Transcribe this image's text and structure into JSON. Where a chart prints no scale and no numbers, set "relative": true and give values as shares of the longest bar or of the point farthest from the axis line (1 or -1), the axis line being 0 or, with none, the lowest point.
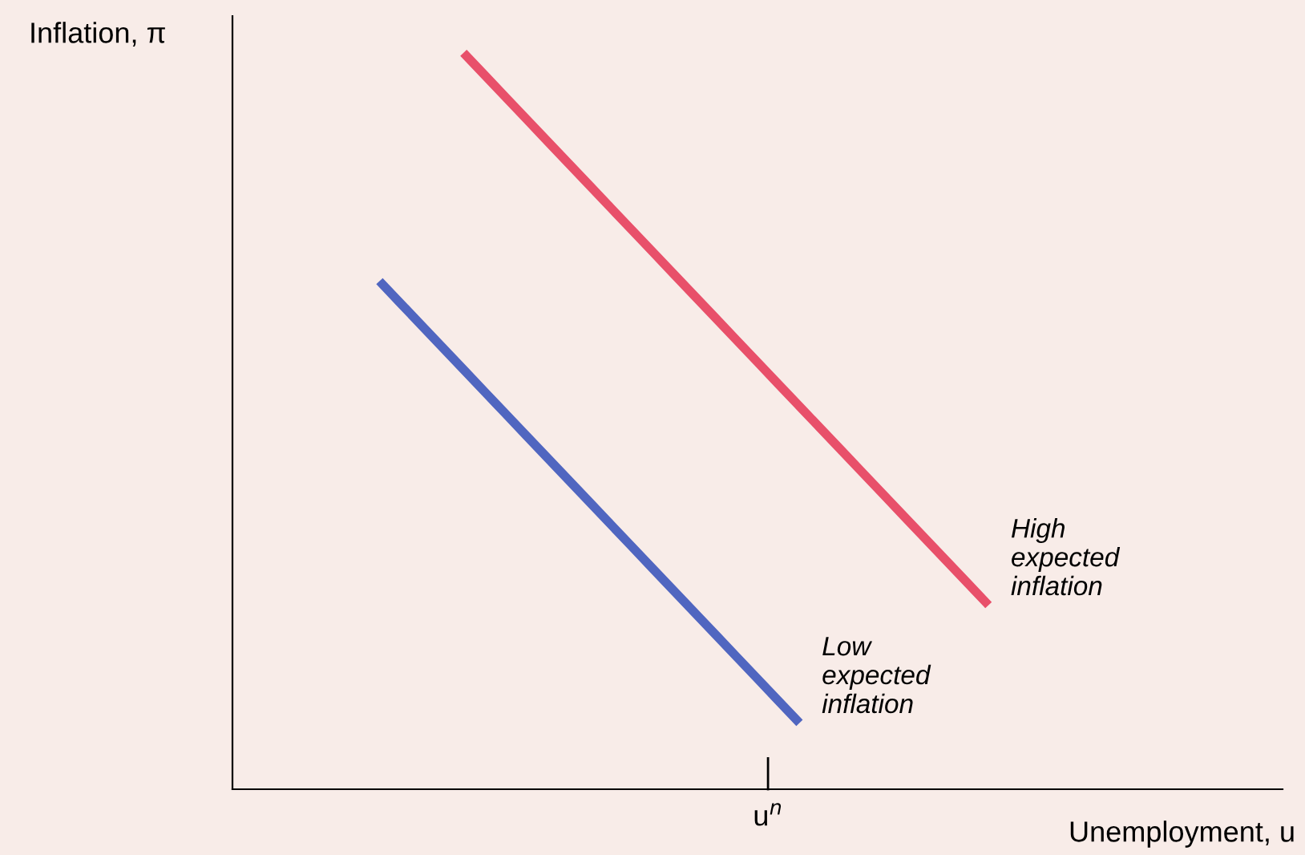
{
  "chart_data": {
    "type": "line",
    "relative": true,
    "xlabel": "Unemployment, u",
    "ylabel": "Inflation, π",
    "marker": "none",
    "line_style": "solid",
    "categories": [
      null,
      null,
      null,
      null,
      null,
      null,
      null,
      null,
      null,
      null,
      null,
      null,
      null,
      null,
      null,
      null,
      null,
      null,
      null,
      null,
      null,
      null,
      null,
      null,
      null,
      null,
      null,
      null,
      null,
      null,
      null,
      null,
      null,
      null,
      null,
      null,
      null,
      null,
      null,
      null,
      null,
      null,
      null,
      null,
      null,
      null,
      null,
      null,
      null,
      null
    ],
    "series": [
      {
        "color": "#e8506a",
        "values": [
          null,
          null,
          null,
          null,
          null,
          null,
          null,
          null,
          null,
          null,
          null,
          1.0,
          0.97,
          0.94,
          0.91,
          0.88,
          0.85,
          0.82,
          0.79,
          0.76,
          0.73,
          0.7,
          0.67,
          0.64,
          0.61,
          0.58,
          0.55,
          0.52,
          0.49,
          0.46,
          0.43,
          0.4,
          0.37,
          0.34,
          0.31,
          0.28,
          0.25,
          null,
          null,
          null,
          null,
          null,
          null,
          null,
          null,
          null,
          null,
          null,
          null,
          null
        ]
      },
      {
        "color": "#5066c0",
        "values": [
          null,
          null,
          null,
          null,
          null,
          null,
          null,
          0.69,
          0.66,
          0.63,
          0.6,
          0.57,
          0.54,
          0.51,
          0.48,
          0.45,
          0.42,
          0.39,
          0.36,
          0.33,
          0.3,
          0.27,
          0.24,
          0.21,
          0.18,
          0.15,
          0.12,
          0.09,
          null,
          null,
          null,
          null,
          null,
          null,
          null,
          null,
          null,
          null,
          null,
          null,
          null,
          null,
          null,
          null,
          null,
          null,
          null,
          null,
          null,
          null
        ]
      }
    ],
    "annotations": [
      "u$^{n}$",
      "High\nexpected\ninflation",
      "Low\nexpected\ninflation"
    ]
  }
}
